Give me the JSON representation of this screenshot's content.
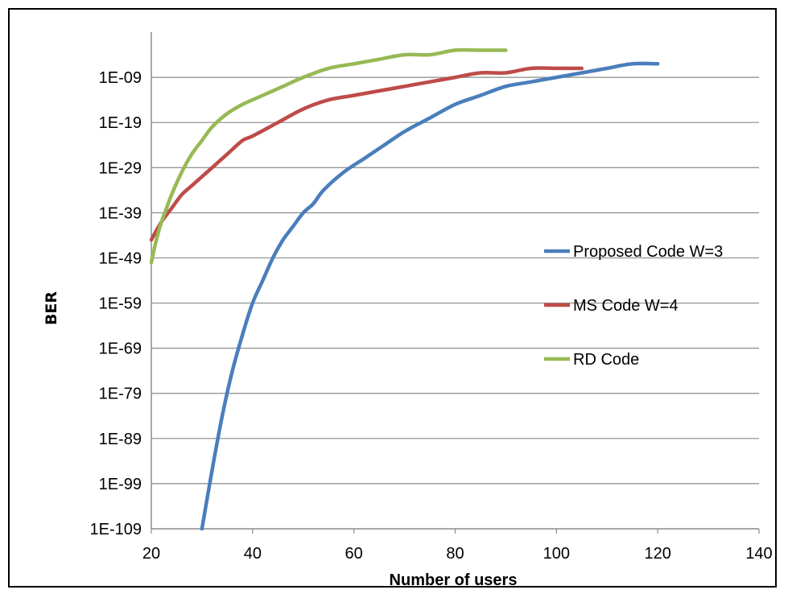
{
  "chart_data": {
    "type": "line",
    "ylabel": "BER",
    "xlabel": "Number of users",
    "xlim": [
      20,
      140
    ],
    "x_ticks": [
      "20",
      "40",
      "60",
      "80",
      "100",
      "120",
      "140"
    ],
    "y_scale": "log",
    "ylim_exponent": [
      -109,
      1
    ],
    "y_ticks": [
      "1E-109",
      "1E-99",
      "1E-89",
      "1E-79",
      "1E-69",
      "1E-59",
      "1E-49",
      "1E-39",
      "1E-29",
      "1E-19",
      "1E-09"
    ],
    "grid": "horizontal major gridlines",
    "legend_position": "right",
    "series": [
      {
        "name": "Proposed Code W=3",
        "color": "#4a7ebb",
        "x": [
          30,
          32,
          34,
          36,
          38,
          40,
          42,
          44,
          46,
          48,
          50,
          52,
          54,
          58,
          62,
          66,
          70,
          75,
          80,
          85,
          90,
          95,
          100,
          105,
          110,
          115,
          120
        ],
        "y": [
          "1E-109",
          "1E-96",
          "1E-84",
          "1E-74",
          "1E-66",
          "1E-59",
          "1E-54",
          "1E-49",
          "1E-45",
          "1E-42",
          "1E-39",
          "1E-37",
          "1E-34",
          "1E-30",
          "1E-27",
          "1E-24",
          "1E-21",
          "1E-18",
          "1E-15",
          "1E-13",
          "1E-11",
          "1E-10",
          "1E-09",
          "1E-08",
          "1E-07",
          "1E-06",
          "1E-06"
        ]
      },
      {
        "name": "MS Code W=4",
        "color": "#be4b48",
        "x": [
          20,
          22,
          24,
          26,
          28,
          30,
          32,
          35,
          38,
          40,
          45,
          50,
          55,
          60,
          65,
          70,
          75,
          80,
          85,
          90,
          95,
          100,
          105
        ],
        "y": [
          "1E-45",
          "1E-41",
          "1E-38",
          "1E-35",
          "1E-33",
          "1E-31",
          "1E-29",
          "1E-26",
          "1E-23",
          "1E-22",
          "1E-19",
          "1E-16",
          "1E-14",
          "1E-13",
          "1E-12",
          "1E-11",
          "1E-10",
          "1E-09",
          "1E-08",
          "1E-08",
          "1E-07",
          "1E-07",
          "1E-07"
        ]
      },
      {
        "name": "RD Code",
        "color": "#98b954",
        "x": [
          20,
          21,
          22,
          23,
          24,
          26,
          28,
          30,
          32,
          35,
          38,
          42,
          46,
          50,
          55,
          60,
          65,
          70,
          75,
          80,
          85,
          90
        ],
        "y": [
          "1E-50",
          "1E-45",
          "1E-41",
          "1E-38",
          "1E-35",
          "1E-30",
          "1E-26",
          "1E-23",
          "1E-20",
          "1E-17",
          "1E-15",
          "1E-13",
          "1E-11",
          "1E-09",
          "1E-07",
          "1E-06",
          "1E-05",
          "1E-04",
          "1E-04",
          "1E-03",
          "1E-03",
          "1E-03"
        ]
      }
    ]
  }
}
